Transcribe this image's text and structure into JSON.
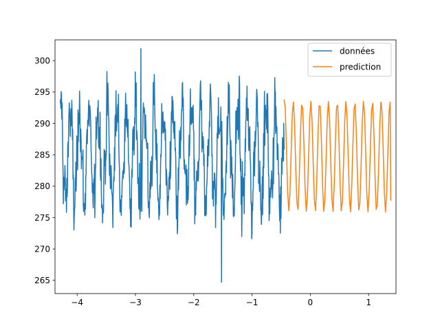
{
  "chart_data": {
    "type": "line",
    "title": "",
    "xlabel": "",
    "ylabel": "",
    "xlim": [
      -4.38,
      1.47
    ],
    "ylim": [
      262.9,
      303.3
    ],
    "xticks": [
      -4,
      -3,
      -2,
      -1,
      0,
      1
    ],
    "yticks": [
      265,
      270,
      275,
      280,
      285,
      290,
      295,
      300
    ],
    "grid": false,
    "legend_position": "top-right",
    "series": [
      {
        "name": "données",
        "color": "#1f77b4",
        "x_range": [
          -4.29,
          -0.45
        ],
        "points": 720,
        "mean": 284.8,
        "amplitude": 7.5,
        "period": 0.16,
        "noise": 3.2,
        "min": 264.7,
        "max": 301.9
      },
      {
        "name": "prediction",
        "color": "#ff7f0e",
        "x_range": [
          -0.45,
          1.38
        ],
        "x": [
          -0.45,
          -0.43,
          -0.41,
          -0.39,
          -0.37,
          -0.35,
          -0.33,
          -0.31,
          -0.29,
          -0.27,
          -0.25,
          -0.23,
          -0.21,
          -0.19,
          -0.17,
          -0.15,
          -0.13,
          -0.11,
          -0.09,
          -0.07,
          -0.05,
          -0.03,
          -0.01,
          0.01,
          0.03,
          0.05,
          0.07,
          0.09,
          0.11,
          0.13,
          0.15,
          0.17,
          0.19,
          0.21,
          0.23,
          0.25,
          0.27,
          0.29,
          0.31,
          0.33,
          0.35,
          0.37,
          0.39,
          0.41,
          0.43,
          0.45,
          0.47,
          0.49,
          0.51,
          0.53,
          0.55,
          0.57,
          0.59,
          0.61,
          0.63,
          0.65,
          0.67,
          0.69,
          0.71,
          0.73,
          0.75,
          0.77,
          0.79,
          0.81,
          0.83,
          0.85,
          0.87,
          0.89,
          0.91,
          0.93,
          0.95,
          0.97,
          0.99,
          1.01,
          1.03,
          1.05,
          1.07,
          1.09,
          1.11,
          1.13,
          1.15,
          1.17,
          1.19,
          1.21,
          1.23,
          1.25,
          1.27,
          1.29,
          1.31,
          1.33,
          1.35,
          1.37,
          1.38
        ],
        "y": [
          293.8,
          292.5,
          286.2,
          279.4,
          276.1,
          278.6,
          285.1,
          291.4,
          293.4,
          290.0,
          283.0,
          277.4,
          276.3,
          281.1,
          288.2,
          292.9,
          292.4,
          286.8,
          279.8,
          276.0,
          278.2,
          284.6,
          291.0,
          293.5,
          290.4,
          283.6,
          277.7,
          276.1,
          280.6,
          287.6,
          292.8,
          292.7,
          287.3,
          280.2,
          276.0,
          277.9,
          284.0,
          290.6,
          293.5,
          290.8,
          284.1,
          278.0,
          276.0,
          280.1,
          287.0,
          292.6,
          292.9,
          287.9,
          280.7,
          276.1,
          277.6,
          283.4,
          290.2,
          293.5,
          291.2,
          284.7,
          278.3,
          275.9,
          279.7,
          286.4,
          292.3,
          293.1,
          288.4,
          281.2,
          276.2,
          277.3,
          282.9,
          289.8,
          293.5,
          291.6,
          285.3,
          278.7,
          275.9,
          279.3,
          285.8,
          292.0,
          293.2,
          288.9,
          281.7,
          276.3,
          277.0,
          282.3,
          289.3,
          293.4,
          292.0,
          285.9,
          279.1,
          275.9,
          278.9,
          285.2,
          291.7,
          293.4,
          277.7
        ]
      }
    ]
  }
}
